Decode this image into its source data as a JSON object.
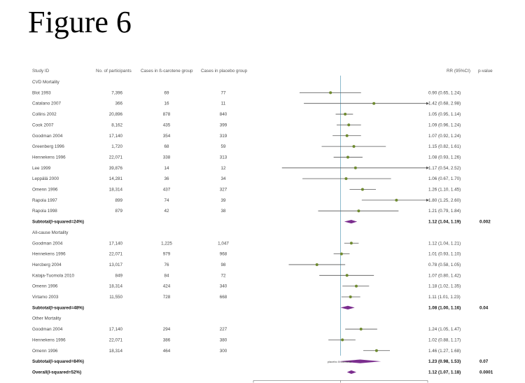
{
  "figure_title": "Figure 6",
  "header": {
    "study_id": "Study ID",
    "participants": "No. of participants",
    "cases_beta": "Cases in ß-carotene group",
    "cases_placebo": "Cases in placebo group",
    "rr": "RR (95%CI)",
    "pvalue": "p-value"
  },
  "axis_label": "placebo ß-carotene",
  "chart_data": {
    "type": "forest",
    "xlim": [
      0.4,
      2.5
    ],
    "log_scale": true,
    "reference_line": 1,
    "rows": [
      {
        "kind": "group",
        "label": "CVD Mortality"
      },
      {
        "kind": "study",
        "label": "Blot 1993",
        "n": "7,396",
        "beta": "69",
        "placebo": "77",
        "rr": 0.9,
        "lo": 0.65,
        "hi": 1.24,
        "rr_text": "0.90 (0.65, 1.24)"
      },
      {
        "kind": "study",
        "label": "Catalano 2007",
        "n": "366",
        "beta": "16",
        "placebo": "11",
        "rr": 1.42,
        "lo": 0.68,
        "hi": 2.98,
        "rr_text": "1.42 (0.68, 2.98)"
      },
      {
        "kind": "study",
        "label": "Collins 2002",
        "n": "20,896",
        "beta": "878",
        "placebo": "840",
        "rr": 1.05,
        "lo": 0.95,
        "hi": 1.14,
        "rr_text": "1.05 (0.95, 1.14)"
      },
      {
        "kind": "study",
        "label": "Cook 2007",
        "n": "8,162",
        "beta": "435",
        "placebo": "399",
        "rr": 1.09,
        "lo": 0.96,
        "hi": 1.24,
        "rr_text": "1.09 (0.96, 1.24)"
      },
      {
        "kind": "study",
        "label": "Goodman 2004",
        "n": "17,140",
        "beta": "354",
        "placebo": "319",
        "rr": 1.07,
        "lo": 0.92,
        "hi": 1.24,
        "rr_text": "1.07 (0.92, 1.24)"
      },
      {
        "kind": "study",
        "label": "Greenberg 1996",
        "n": "1,720",
        "beta": "68",
        "placebo": "59",
        "rr": 1.15,
        "lo": 0.82,
        "hi": 1.61,
        "rr_text": "1.15 (0.82, 1.61)"
      },
      {
        "kind": "study",
        "label": "Hennekens 1996",
        "n": "22,071",
        "beta": "338",
        "placebo": "313",
        "rr": 1.08,
        "lo": 0.93,
        "hi": 1.26,
        "rr_text": "1.08 (0.93, 1.26)"
      },
      {
        "kind": "study",
        "label": "Lee 1999",
        "n": "39,876",
        "beta": "14",
        "placebo": "12",
        "rr": 1.17,
        "lo": 0.54,
        "hi": 2.52,
        "rr_text": "1.17 (0.54, 2.52)"
      },
      {
        "kind": "study",
        "label": "Leppälä 2000",
        "n": "14,281",
        "beta": "36",
        "placebo": "34",
        "rr": 1.06,
        "lo": 0.67,
        "hi": 1.7,
        "rr_text": "1.06 (0.67, 1.70)"
      },
      {
        "kind": "study",
        "label": "Omenn 1996",
        "n": "18,314",
        "beta": "437",
        "placebo": "327",
        "rr": 1.26,
        "lo": 1.1,
        "hi": 1.45,
        "rr_text": "1.26 (1.10, 1.45)"
      },
      {
        "kind": "study",
        "label": "Rapola 1997",
        "n": "899",
        "beta": "74",
        "placebo": "39",
        "rr": 1.8,
        "lo": 1.25,
        "hi": 2.6,
        "rr_text": "1.80 (1.25, 2.60)"
      },
      {
        "kind": "study",
        "label": "Rapola 1998",
        "n": "879",
        "beta": "42",
        "placebo": "38",
        "rr": 1.21,
        "lo": 0.79,
        "hi": 1.84,
        "rr_text": "1.21 (0.79, 1.84)"
      },
      {
        "kind": "subtotal",
        "label": "Subtotal(I-squared=24%)",
        "rr": 1.12,
        "lo": 1.04,
        "hi": 1.19,
        "rr_text": "1.12 (1.04, 1.19)",
        "p": "0.002"
      },
      {
        "kind": "group",
        "label": "All-cause Mortality"
      },
      {
        "kind": "study",
        "label": "Goodman 2004",
        "n": "17,140",
        "beta": "1,225",
        "placebo": "1,047",
        "rr": 1.12,
        "lo": 1.04,
        "hi": 1.21,
        "rr_text": "1.12 (1.04, 1.21)"
      },
      {
        "kind": "study",
        "label": "Hennekens 1996",
        "n": "22,071",
        "beta": "979",
        "placebo": "968",
        "rr": 1.01,
        "lo": 0.93,
        "hi": 1.1,
        "rr_text": "1.01 (0.93, 1.10)"
      },
      {
        "kind": "study",
        "label": "Hercberg 2004",
        "n": "13,017",
        "beta": "76",
        "placebo": "98",
        "rr": 0.78,
        "lo": 0.58,
        "hi": 1.05,
        "rr_text": "0.78 (0.58, 1.05)"
      },
      {
        "kind": "study",
        "label": "Kataja-Tuomola 2010",
        "n": "849",
        "beta": "84",
        "placebo": "72",
        "rr": 1.07,
        "lo": 0.8,
        "hi": 1.42,
        "rr_text": "1.07 (0.80, 1.42)"
      },
      {
        "kind": "study",
        "label": "Omenn 1996",
        "n": "18,314",
        "beta": "424",
        "placebo": "340",
        "rr": 1.18,
        "lo": 1.02,
        "hi": 1.35,
        "rr_text": "1.18 (1.02, 1.35)"
      },
      {
        "kind": "study",
        "label": "Virtamo 2003",
        "n": "11,550",
        "beta": "728",
        "placebo": "668",
        "rr": 1.11,
        "lo": 1.01,
        "hi": 1.23,
        "rr_text": "1.11 (1.01, 1.23)"
      },
      {
        "kind": "subtotal",
        "label": "Subtotal(I-squared=48%)",
        "rr": 1.08,
        "lo": 1.0,
        "hi": 1.16,
        "rr_text": "1.08 (1.00, 1.16)",
        "p": "0.04"
      },
      {
        "kind": "group",
        "label": "Other Mortality"
      },
      {
        "kind": "study",
        "label": "Goodman 2004",
        "n": "17,140",
        "beta": "294",
        "placebo": "227",
        "rr": 1.24,
        "lo": 1.05,
        "hi": 1.47,
        "rr_text": "1.24 (1.05, 1.47)"
      },
      {
        "kind": "study",
        "label": "Hennekens 1996",
        "n": "22,071",
        "beta": "386",
        "placebo": "380",
        "rr": 1.02,
        "lo": 0.88,
        "hi": 1.17,
        "rr_text": "1.02 (0.88, 1.17)"
      },
      {
        "kind": "study",
        "label": "Omenn 1996",
        "n": "18,314",
        "beta": "464",
        "placebo": "300",
        "rr": 1.46,
        "lo": 1.27,
        "hi": 1.68,
        "rr_text": "1.46 (1.27, 1.68)"
      },
      {
        "kind": "subtotal",
        "label": "Subtotal(I-squared=84%)",
        "rr": 1.23,
        "lo": 0.98,
        "hi": 1.53,
        "rr_text": "1.23 (0.98, 1.53)",
        "p": "0.07"
      },
      {
        "kind": "subtotal",
        "label": "Overall(I-squared=52%)",
        "rr": 1.12,
        "lo": 1.07,
        "hi": 1.18,
        "rr_text": "1.12 (1.07, 1.18)",
        "p": "0.0001"
      }
    ]
  },
  "colors": {
    "point": "#6e8a2f",
    "diamond": "#7b2d8e",
    "reference_line": "#7fb3c8",
    "ci_line": "#555555"
  }
}
